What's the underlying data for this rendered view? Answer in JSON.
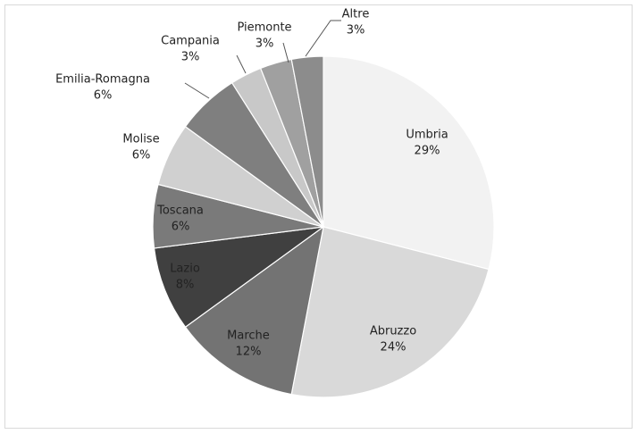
{
  "chart_data": {
    "type": "pie",
    "categories": [
      "Umbria",
      "Abruzzo",
      "Marche",
      "Lazio",
      "Toscana",
      "Molise",
      "Emilia-Romagna",
      "Campania",
      "Piemonte",
      "Altre"
    ],
    "values": [
      29,
      24,
      12,
      8,
      6,
      6,
      6,
      3,
      3,
      3
    ],
    "value_labels": [
      "29%",
      "24%",
      "12%",
      "8%",
      "6%",
      "6%",
      "6%",
      "3%",
      "3%",
      "3%"
    ],
    "colors": [
      "#f2f2f2",
      "#d9d9d9",
      "#737373",
      "#404040",
      "#7a7a7a",
      "#d0d0d0",
      "#7f7f7f",
      "#c8c8c8",
      "#a0a0a0",
      "#8c8c8c"
    ]
  }
}
